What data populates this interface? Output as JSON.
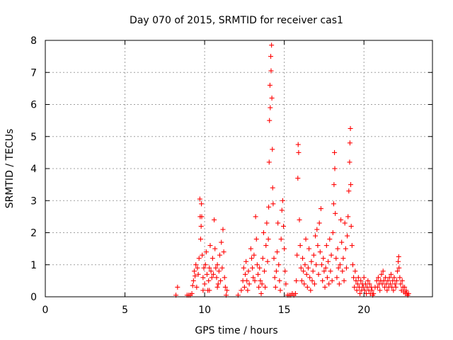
{
  "chart_data": {
    "type": "scatter",
    "title": "Day 070 of 2015, SRMTID for receiver cas1",
    "xlabel": "GPS time / hours",
    "ylabel": "SRMTID / TECUs",
    "xlim": [
      0,
      24.3
    ],
    "ylim": [
      0,
      8
    ],
    "xticks": [
      0,
      5,
      10,
      15,
      20
    ],
    "yticks": [
      0,
      1,
      2,
      3,
      4,
      5,
      6,
      7,
      8
    ],
    "xtick_labels": [
      "0",
      "5",
      "10",
      "15",
      "20"
    ],
    "ytick_labels": [
      "0",
      "1",
      "2",
      "3",
      "4",
      "5",
      "6",
      "7",
      "8"
    ],
    "grid": true,
    "marker": "+",
    "color": "#ff0000",
    "series": [
      {
        "name": "cas1",
        "points": [
          [
            8.2,
            0.05
          ],
          [
            8.3,
            0.3
          ],
          [
            8.9,
            0.05
          ],
          [
            9.0,
            0.05
          ],
          [
            9.1,
            0.05
          ],
          [
            9.2,
            0.1
          ],
          [
            9.25,
            0.35
          ],
          [
            9.3,
            0.5
          ],
          [
            9.35,
            0.8
          ],
          [
            9.4,
            0.65
          ],
          [
            9.45,
            1.0
          ],
          [
            9.5,
            0.3
          ],
          [
            9.55,
            0.9
          ],
          [
            9.6,
            0.7
          ],
          [
            9.65,
            1.2
          ],
          [
            9.7,
            3.05
          ],
          [
            9.72,
            2.5
          ],
          [
            9.75,
            1.8
          ],
          [
            9.78,
            2.2
          ],
          [
            9.8,
            2.9
          ],
          [
            9.82,
            2.5
          ],
          [
            9.85,
            1.3
          ],
          [
            9.9,
            0.6
          ],
          [
            9.95,
            0.9
          ],
          [
            10.0,
            0.4
          ],
          [
            10.05,
            1.0
          ],
          [
            10.1,
            1.4
          ],
          [
            10.15,
            0.7
          ],
          [
            10.2,
            0.2
          ],
          [
            10.25,
            0.5
          ],
          [
            10.3,
            0.9
          ],
          [
            10.35,
            1.6
          ],
          [
            10.4,
            0.8
          ],
          [
            10.45,
            0.6
          ],
          [
            10.5,
            1.2
          ],
          [
            10.55,
            0.7
          ],
          [
            10.6,
            2.4
          ],
          [
            10.65,
            1.5
          ],
          [
            10.7,
            0.9
          ],
          [
            10.75,
            0.6
          ],
          [
            10.8,
            1.0
          ],
          [
            10.85,
            0.4
          ],
          [
            10.9,
            0.8
          ],
          [
            10.95,
            1.3
          ],
          [
            11.0,
            0.5
          ],
          [
            11.05,
            1.7
          ],
          [
            11.1,
            0.9
          ],
          [
            11.15,
            2.1
          ],
          [
            11.2,
            1.4
          ],
          [
            11.25,
            0.6
          ],
          [
            11.3,
            0.3
          ],
          [
            11.35,
            0.05
          ],
          [
            11.4,
            0.2
          ],
          [
            9.9,
            0.2
          ],
          [
            10.3,
            0.2
          ],
          [
            10.8,
            0.3
          ],
          [
            12.1,
            0.05
          ],
          [
            12.3,
            0.2
          ],
          [
            12.4,
            0.5
          ],
          [
            12.45,
            0.9
          ],
          [
            12.5,
            0.3
          ],
          [
            12.55,
            0.7
          ],
          [
            12.6,
            1.1
          ],
          [
            12.65,
            0.5
          ],
          [
            12.7,
            0.2
          ],
          [
            12.75,
            0.8
          ],
          [
            12.8,
            0.4
          ],
          [
            12.9,
            1.5
          ],
          [
            12.95,
            1.2
          ],
          [
            13.0,
            0.9
          ],
          [
            13.05,
            0.6
          ],
          [
            13.1,
            1.3
          ],
          [
            13.15,
            0.5
          ],
          [
            13.2,
            2.5
          ],
          [
            13.25,
            1.8
          ],
          [
            13.3,
            1.0
          ],
          [
            13.35,
            0.7
          ],
          [
            13.4,
            0.3
          ],
          [
            13.45,
            0.9
          ],
          [
            13.5,
            0.5
          ],
          [
            13.55,
            0.1
          ],
          [
            13.6,
            0.4
          ],
          [
            13.65,
            1.2
          ],
          [
            13.7,
            2.0
          ],
          [
            13.75,
            0.8
          ],
          [
            13.8,
            0.3
          ],
          [
            13.85,
            1.6
          ],
          [
            13.9,
            2.3
          ],
          [
            13.95,
            1.1
          ],
          [
            14.0,
            1.8
          ],
          [
            14.02,
            2.8
          ],
          [
            14.05,
            4.2
          ],
          [
            14.07,
            5.5
          ],
          [
            14.1,
            6.6
          ],
          [
            14.12,
            5.9
          ],
          [
            14.15,
            7.5
          ],
          [
            14.17,
            7.05
          ],
          [
            14.2,
            7.85
          ],
          [
            14.22,
            6.2
          ],
          [
            14.25,
            4.6
          ],
          [
            14.27,
            3.4
          ],
          [
            14.3,
            2.9
          ],
          [
            14.35,
            1.2
          ],
          [
            14.4,
            0.6
          ],
          [
            14.45,
            0.3
          ],
          [
            14.5,
            0.8
          ],
          [
            14.55,
            1.4
          ],
          [
            14.6,
            2.3
          ],
          [
            14.65,
            1.0
          ],
          [
            14.7,
            0.5
          ],
          [
            14.75,
            0.2
          ],
          [
            14.8,
            1.8
          ],
          [
            14.85,
            2.7
          ],
          [
            14.9,
            3.0
          ],
          [
            14.95,
            2.2
          ],
          [
            15.0,
            1.5
          ],
          [
            15.05,
            0.8
          ],
          [
            15.1,
            0.4
          ],
          [
            15.2,
            0.05
          ],
          [
            15.3,
            0.05
          ],
          [
            15.4,
            0.05
          ],
          [
            15.5,
            0.1
          ],
          [
            15.6,
            0.05
          ],
          [
            15.7,
            0.1
          ],
          [
            15.75,
            0.5
          ],
          [
            15.8,
            1.3
          ],
          [
            15.85,
            3.7
          ],
          [
            15.87,
            4.75
          ],
          [
            15.9,
            4.5
          ],
          [
            15.95,
            2.4
          ],
          [
            16.0,
            1.6
          ],
          [
            16.05,
            0.9
          ],
          [
            16.1,
            0.5
          ],
          [
            16.15,
            1.2
          ],
          [
            16.2,
            0.8
          ],
          [
            16.25,
            0.4
          ],
          [
            16.3,
            1.0
          ],
          [
            16.35,
            1.8
          ],
          [
            16.4,
            0.7
          ],
          [
            16.45,
            0.3
          ],
          [
            16.5,
            0.9
          ],
          [
            16.55,
            1.5
          ],
          [
            16.6,
            0.6
          ],
          [
            16.65,
            0.2
          ],
          [
            16.7,
            1.1
          ],
          [
            16.75,
            0.5
          ],
          [
            16.8,
            0.8
          ],
          [
            16.85,
            1.3
          ],
          [
            16.9,
            0.4
          ],
          [
            16.95,
            1.9
          ],
          [
            17.0,
            1.0
          ],
          [
            17.05,
            2.1
          ],
          [
            17.1,
            1.6
          ],
          [
            17.15,
            0.7
          ],
          [
            17.2,
            2.3
          ],
          [
            17.25,
            1.4
          ],
          [
            17.3,
            2.75
          ],
          [
            17.35,
            1.0
          ],
          [
            17.4,
            0.5
          ],
          [
            17.45,
            1.2
          ],
          [
            17.5,
            0.8
          ],
          [
            17.55,
            0.3
          ],
          [
            17.6,
            0.9
          ],
          [
            17.65,
            1.6
          ],
          [
            17.7,
            0.6
          ],
          [
            17.75,
            1.1
          ],
          [
            17.8,
            0.4
          ],
          [
            17.85,
            1.8
          ],
          [
            17.9,
            0.8
          ],
          [
            17.95,
            1.3
          ],
          [
            18.0,
            0.5
          ],
          [
            18.05,
            2.0
          ],
          [
            18.1,
            2.9
          ],
          [
            18.12,
            3.5
          ],
          [
            18.15,
            4.5
          ],
          [
            18.17,
            4.0
          ],
          [
            18.2,
            2.6
          ],
          [
            18.25,
            1.2
          ],
          [
            18.3,
            0.6
          ],
          [
            18.35,
            1.5
          ],
          [
            18.4,
            0.9
          ],
          [
            18.45,
            0.4
          ],
          [
            18.5,
            1.0
          ],
          [
            18.55,
            2.4
          ],
          [
            18.6,
            1.7
          ],
          [
            18.65,
            0.8
          ],
          [
            18.7,
            1.2
          ],
          [
            18.75,
            0.5
          ],
          [
            18.8,
            2.3
          ],
          [
            18.85,
            1.5
          ],
          [
            18.9,
            0.9
          ],
          [
            18.95,
            1.9
          ],
          [
            19.0,
            2.5
          ],
          [
            19.05,
            3.3
          ],
          [
            19.1,
            4.2
          ],
          [
            19.12,
            4.8
          ],
          [
            19.15,
            5.25
          ],
          [
            19.17,
            3.5
          ],
          [
            19.2,
            2.2
          ],
          [
            19.25,
            1.6
          ],
          [
            19.3,
            1.0
          ],
          [
            19.35,
            0.6
          ],
          [
            19.4,
            0.3
          ],
          [
            19.45,
            0.8
          ],
          [
            19.5,
            0.5
          ],
          [
            19.55,
            0.2
          ],
          [
            19.6,
            0.4
          ],
          [
            19.65,
            0.6
          ],
          [
            19.7,
            0.3
          ],
          [
            19.75,
            0.1
          ],
          [
            19.8,
            0.5
          ],
          [
            19.85,
            0.2
          ],
          [
            19.9,
            0.4
          ],
          [
            19.95,
            0.3
          ],
          [
            20.0,
            0.6
          ],
          [
            20.05,
            0.2
          ],
          [
            20.1,
            0.4
          ],
          [
            20.15,
            0.1
          ],
          [
            20.2,
            0.3
          ],
          [
            20.25,
            0.5
          ],
          [
            20.3,
            0.2
          ],
          [
            20.35,
            0.4
          ],
          [
            20.4,
            0.1
          ],
          [
            20.45,
            0.3
          ],
          [
            20.5,
            0.2
          ],
          [
            20.55,
            0.05
          ],
          [
            20.6,
            0.1
          ],
          [
            20.7,
            0.3
          ],
          [
            20.8,
            0.5
          ],
          [
            20.85,
            0.3
          ],
          [
            20.9,
            0.6
          ],
          [
            20.95,
            0.4
          ],
          [
            21.0,
            0.2
          ],
          [
            21.05,
            0.5
          ],
          [
            21.1,
            0.7
          ],
          [
            21.15,
            0.4
          ],
          [
            21.2,
            0.8
          ],
          [
            21.25,
            0.5
          ],
          [
            21.3,
            0.3
          ],
          [
            21.35,
            0.6
          ],
          [
            21.4,
            0.4
          ],
          [
            21.45,
            0.2
          ],
          [
            21.5,
            0.5
          ],
          [
            21.55,
            0.3
          ],
          [
            21.6,
            0.6
          ],
          [
            21.65,
            0.4
          ],
          [
            21.7,
            0.7
          ],
          [
            21.75,
            0.3
          ],
          [
            21.8,
            0.5
          ],
          [
            21.85,
            0.2
          ],
          [
            21.9,
            0.6
          ],
          [
            21.95,
            0.4
          ],
          [
            22.0,
            0.3
          ],
          [
            22.05,
            0.5
          ],
          [
            22.1,
            0.8
          ],
          [
            22.15,
            1.1
          ],
          [
            22.18,
            1.25
          ],
          [
            22.2,
            0.9
          ],
          [
            22.25,
            0.6
          ],
          [
            22.3,
            0.4
          ],
          [
            22.35,
            0.2
          ],
          [
            22.4,
            0.5
          ],
          [
            22.45,
            0.3
          ],
          [
            22.5,
            0.15
          ],
          [
            22.55,
            0.3
          ],
          [
            22.6,
            0.1
          ],
          [
            22.65,
            0.2
          ],
          [
            22.7,
            0.1
          ],
          [
            22.75,
            0.05
          ],
          [
            22.8,
            0.1
          ]
        ]
      }
    ]
  }
}
